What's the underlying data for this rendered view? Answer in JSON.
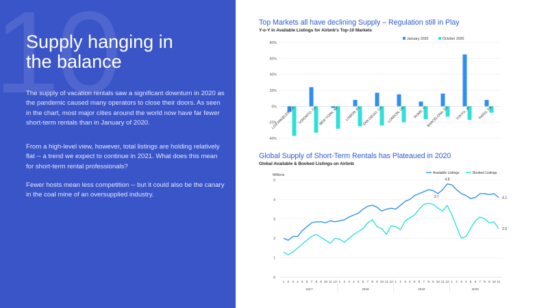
{
  "slide": {
    "number": "10",
    "headline": "Supply hanging in\nthe balance",
    "paragraphs": [
      "The supply of vacation rentals saw a significant downturn in 2020 as the pandemic caused many operators to close their doors. As seen in the chart, most major cities around the world now have far fewer short-term rentals than in January of 2020.",
      "From a high-level view, however, total listings are holding relatively flat -- a trend we expect to continue in 2021. What does this mean for short-term rental professionals?",
      "Fewer hosts mean less competition -- but it could also be the canary in the coal mine of an oversupplied industry."
    ]
  },
  "colors": {
    "background": "#3a55c8",
    "dark_blue": "#2f8ff0",
    "cyan": "#2fe0d8",
    "title_blue": "#2b59d6"
  },
  "chart_data": [
    {
      "type": "bar",
      "title": "Top Markets all have declining Supply – Regulation still in Play",
      "subtitle": "Y-o-Y in Available Listings for Airbnb's Top-10 Markets",
      "categories": [
        "LOS ANGELES, CA",
        "TORONTO, CA",
        "NEW YORK, NY",
        "LISBON, PT",
        "SAN DIEGO, CA",
        "LONDON, UK",
        "ROME, IT",
        "BARCELONA, ES",
        "TOKYO, JP",
        "PARIS, FR"
      ],
      "series": [
        {
          "name": "January 2020",
          "color": "#2f8ff0",
          "values": [
            -7,
            24,
            -2,
            8,
            17,
            15,
            6,
            16,
            65,
            8
          ]
        },
        {
          "name": "October 2020",
          "color": "#2fe0d8",
          "values": [
            -37,
            -33,
            -28,
            -25,
            -24,
            -20,
            -16,
            -13,
            -17,
            -8
          ]
        }
      ],
      "ylim": [
        -40,
        80
      ],
      "yticks": [
        "80%",
        "60%",
        "40%",
        "20%",
        "0%",
        "-20%",
        "-40%"
      ],
      "legend": "top-right"
    },
    {
      "type": "line",
      "title": "Global Supply of Short-Term Rentals has Plateaued in 2020",
      "subtitle": "Global Available & Booked Listings on Airbnb",
      "ylabel": "Millions",
      "ylim": [
        0,
        5
      ],
      "yticks": [
        "0",
        "1",
        "2",
        "3",
        "4",
        "5"
      ],
      "x_months": [
        "1",
        "2",
        "3",
        "4",
        "5",
        "6",
        "7",
        "8",
        "9",
        "10",
        "11",
        "12",
        "1",
        "2",
        "3",
        "4",
        "5",
        "6",
        "7",
        "8",
        "9",
        "10",
        "11",
        "12",
        "1",
        "2",
        "3",
        "4",
        "5",
        "6",
        "7",
        "8",
        "9",
        "10",
        "11",
        "12",
        "1",
        "2",
        "3",
        "4",
        "5",
        "6",
        "7",
        "8",
        "9",
        "10",
        "11"
      ],
      "x_years": [
        "2017",
        "2018",
        "2019",
        "2020"
      ],
      "series": [
        {
          "name": "Available Listings",
          "color": "#2f8ff0",
          "values": [
            2.0,
            1.9,
            2.1,
            2.1,
            2.4,
            2.6,
            2.8,
            2.85,
            2.85,
            2.8,
            2.9,
            2.85,
            2.9,
            2.95,
            3.1,
            3.2,
            3.3,
            3.5,
            3.65,
            3.7,
            3.6,
            3.4,
            3.5,
            3.55,
            3.5,
            3.7,
            3.9,
            4.0,
            4.2,
            4.3,
            4.4,
            4.5,
            4.45,
            4.3,
            4.5,
            4.8,
            4.75,
            4.5,
            4.3,
            4.2,
            4.05,
            4.1,
            4.3,
            4.3,
            4.25,
            4.3,
            4.1
          ]
        },
        {
          "name": "Booked Listings",
          "color": "#2fe0d8",
          "values": [
            1.3,
            1.15,
            1.3,
            1.5,
            1.7,
            1.9,
            2.1,
            2.2,
            2.05,
            1.9,
            1.75,
            2.0,
            1.95,
            1.8,
            2.0,
            2.2,
            2.35,
            2.5,
            2.8,
            2.95,
            2.6,
            2.5,
            2.2,
            2.65,
            2.6,
            2.45,
            2.9,
            3.05,
            3.2,
            3.5,
            3.75,
            3.8,
            3.75,
            3.55,
            3.4,
            3.7,
            3.2,
            2.6,
            2.0,
            2.1,
            2.5,
            2.9,
            3.1,
            3.0,
            2.8,
            2.85,
            2.5
          ]
        }
      ],
      "annotations": [
        "4.8",
        "3.7",
        "4.1",
        "2.5"
      ],
      "legend": "top-right"
    }
  ]
}
